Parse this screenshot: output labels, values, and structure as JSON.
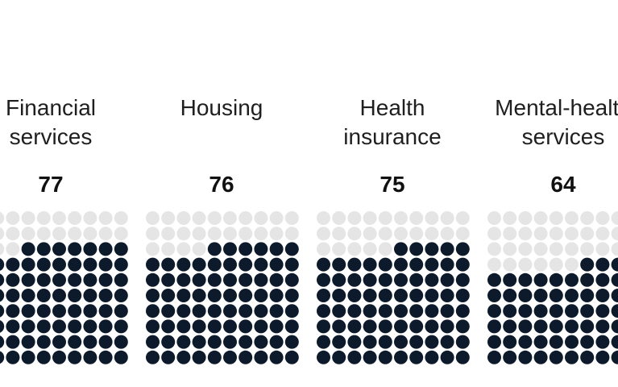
{
  "chart_data": {
    "type": "waffle",
    "grid": {
      "columns": 10,
      "rows": 10,
      "total": 100
    },
    "colors": {
      "filled": "#0c1a2b",
      "empty": "#e5e5e5"
    },
    "categories": [
      {
        "label_lines": [
          "Financial",
          "services"
        ],
        "value": 77,
        "value_text": "77"
      },
      {
        "label_lines": [
          "Housing"
        ],
        "value": 76,
        "value_text": "76"
      },
      {
        "label_lines": [
          "Health",
          "insurance"
        ],
        "value": 75,
        "value_text": "75"
      },
      {
        "label_lines": [
          "Mental-health",
          "services"
        ],
        "value": 64,
        "value_text": "64"
      }
    ]
  }
}
